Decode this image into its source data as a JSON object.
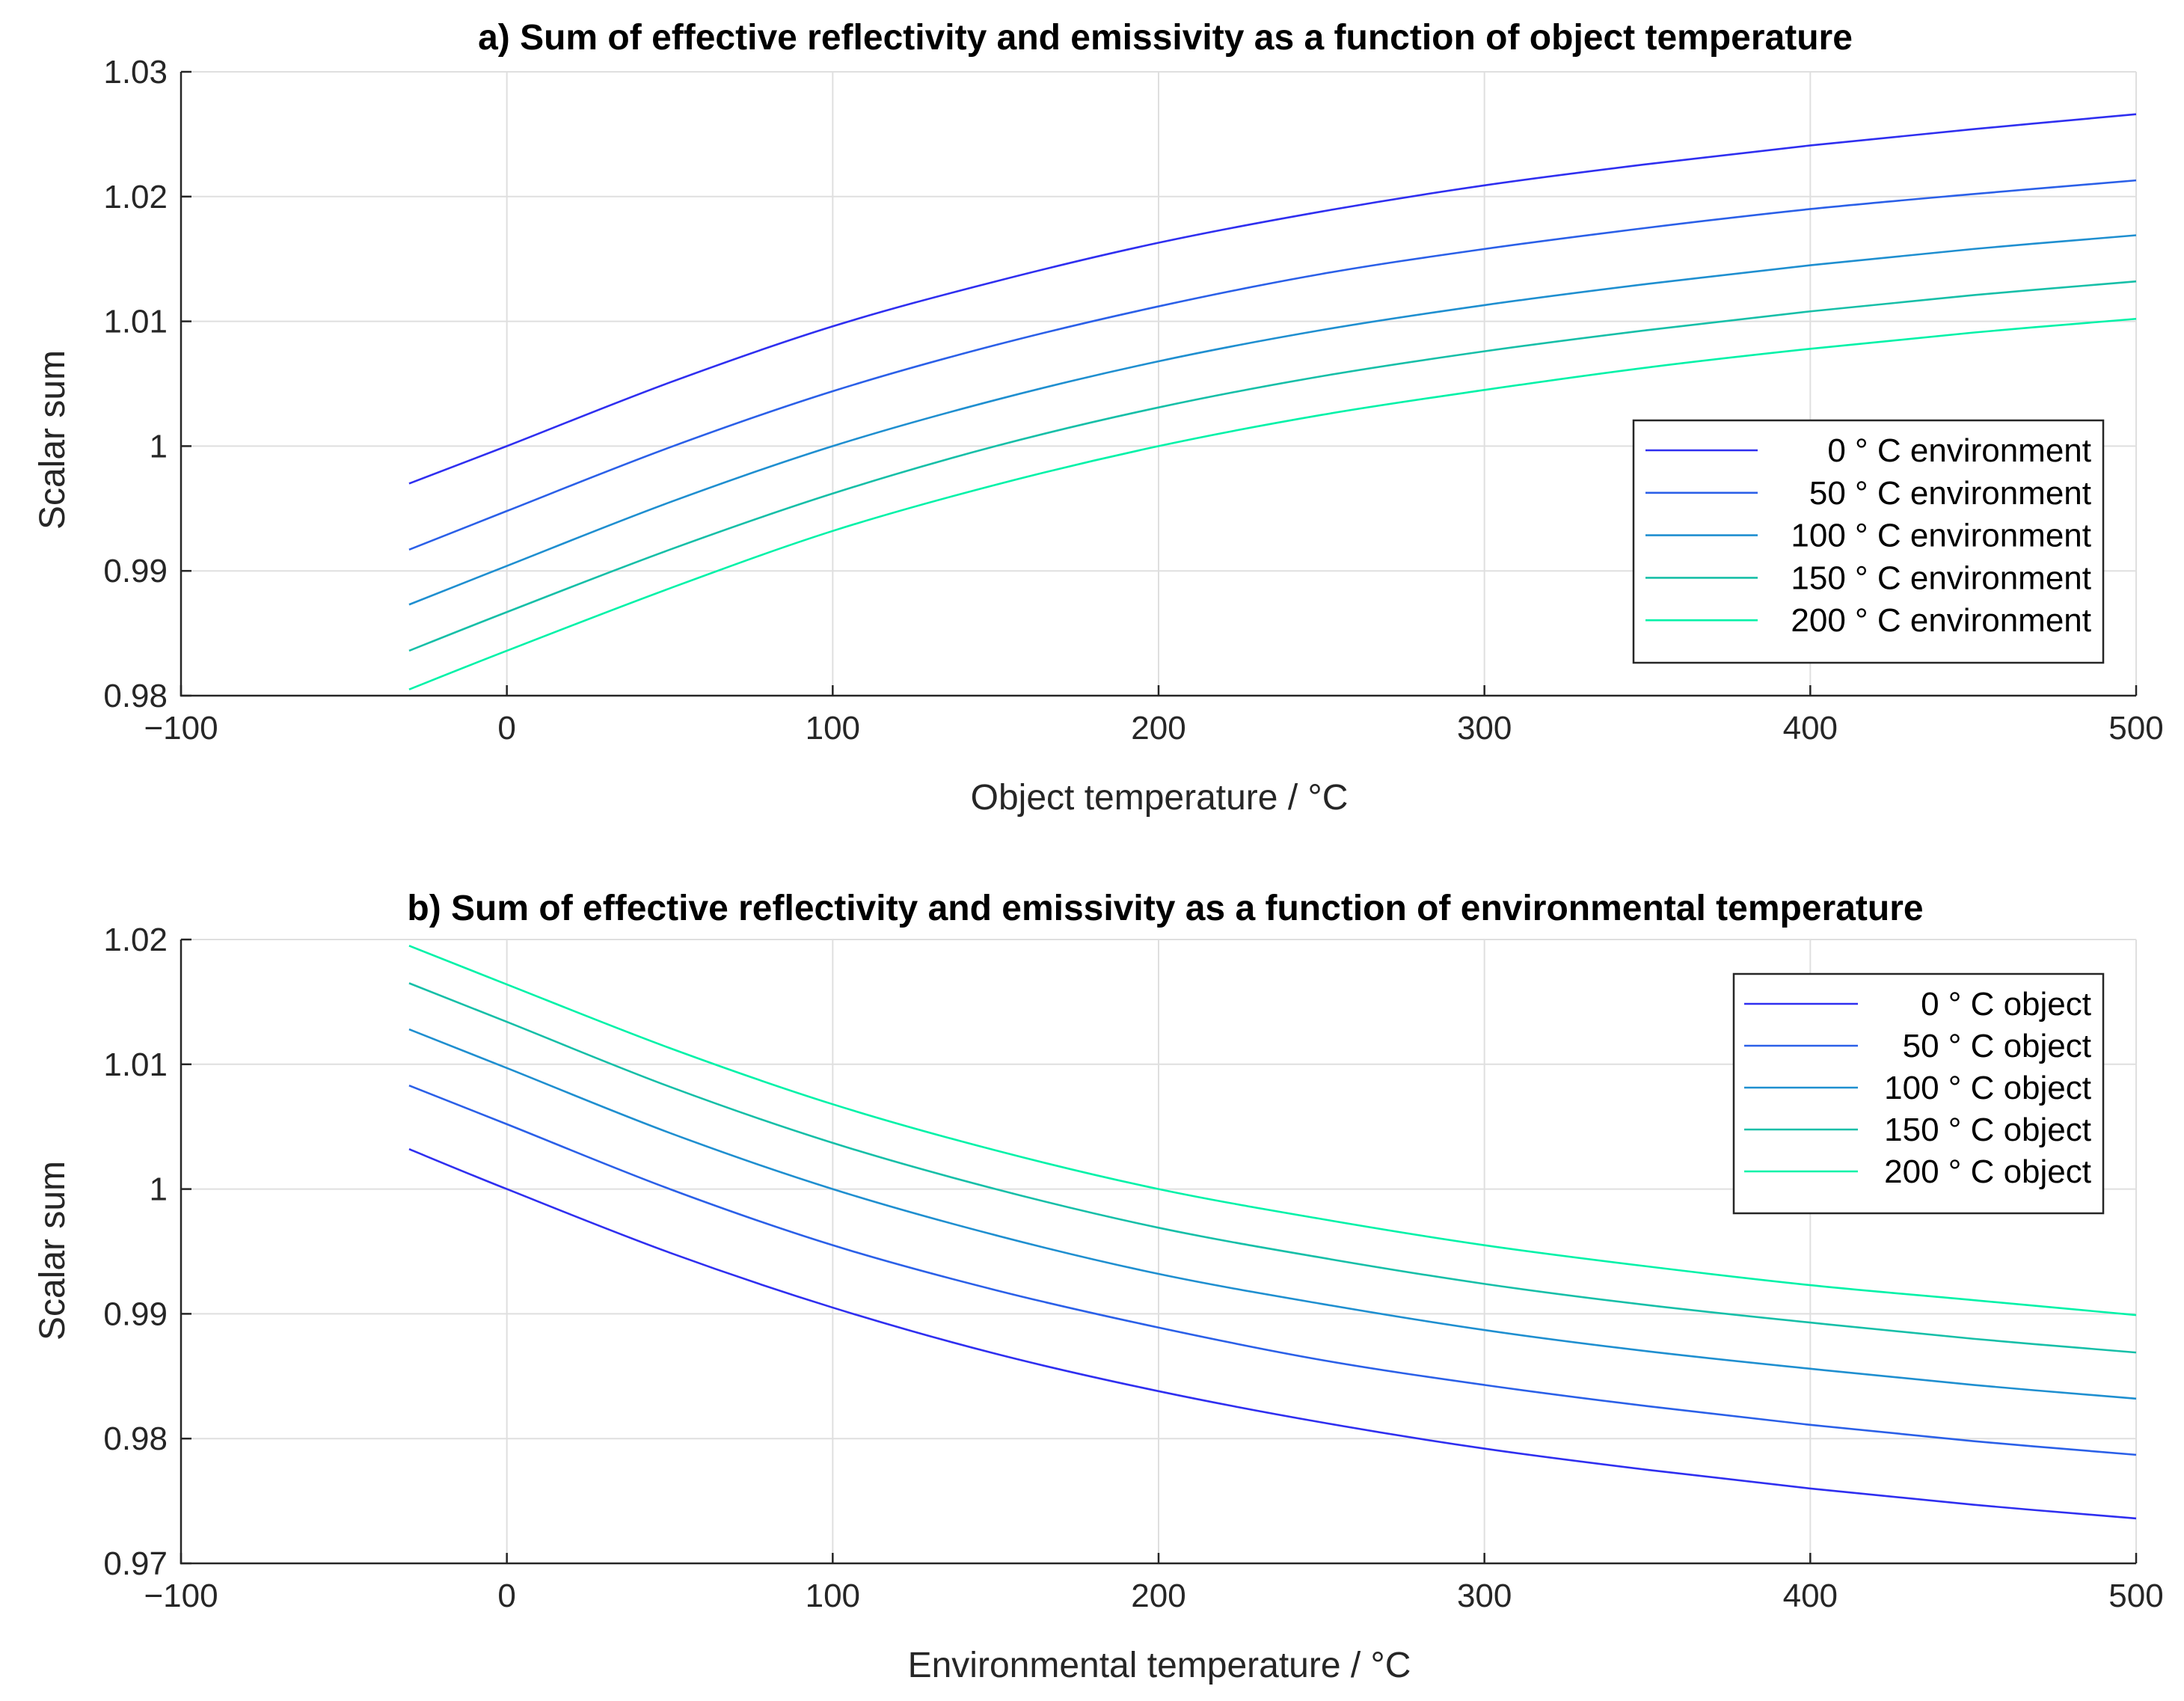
{
  "chart_data": [
    {
      "type": "line",
      "title": "a) Sum of effective reflectivity and emissivity as a function of object temperature",
      "xlabel": "Object temperature / °C",
      "ylabel": "Scalar sum",
      "xlim": [
        -100,
        500
      ],
      "ylim": [
        0.98,
        1.03
      ],
      "xticks": [
        -100,
        0,
        100,
        200,
        300,
        400,
        500
      ],
      "xtick_labels": [
        "−100",
        "0",
        "100",
        "200",
        "300",
        "400",
        "500"
      ],
      "yticks": [
        0.98,
        0.99,
        1.0,
        1.01,
        1.02,
        1.03
      ],
      "ytick_labels": [
        "0.98",
        "0.99",
        "1",
        "1.01",
        "1.02",
        "1.03"
      ],
      "grid": true,
      "legend_position": "center-right",
      "x": [
        -30,
        0,
        50,
        100,
        150,
        200,
        250,
        300,
        350,
        400,
        450,
        500
      ],
      "series": [
        {
          "name": "0 ° C environment",
          "color": "#2f2ff0",
          "values": [
            0.997,
            1.0,
            1.0051,
            1.0096,
            1.0132,
            1.0163,
            1.0188,
            1.0209,
            1.0226,
            1.0241,
            1.0254,
            1.0266
          ]
        },
        {
          "name": "50 ° C environment",
          "color": "#2b60e8",
          "values": [
            0.9917,
            0.9948,
            0.9999,
            1.0044,
            1.0081,
            1.0112,
            1.0138,
            1.0158,
            1.0175,
            1.019,
            1.0202,
            1.0213
          ]
        },
        {
          "name": "100 ° C environment",
          "color": "#1f8fd0",
          "values": [
            0.9873,
            0.9904,
            0.9955,
            1.0,
            1.0037,
            1.0068,
            1.0093,
            1.0113,
            1.013,
            1.0145,
            1.0158,
            1.0169
          ]
        },
        {
          "name": "150 ° C environment",
          "color": "#17bfa8",
          "values": [
            0.9836,
            0.9867,
            0.9917,
            0.9962,
            1.0,
            1.0031,
            1.0056,
            1.0076,
            1.0093,
            1.0108,
            1.0121,
            1.0132
          ]
        },
        {
          "name": "200 ° C environment",
          "color": "#00f2a8",
          "values": [
            0.9805,
            0.9836,
            0.9886,
            0.9932,
            0.9969,
            1.0,
            1.0025,
            1.0045,
            1.0063,
            1.0078,
            1.0091,
            1.0102
          ]
        }
      ]
    },
    {
      "type": "line",
      "title": "b) Sum of effective reflectivity and emissivity as a function of environmental temperature",
      "xlabel": "Environmental temperature / °C",
      "ylabel": "Scalar sum",
      "xlim": [
        -100,
        500
      ],
      "ylim": [
        0.97,
        1.02
      ],
      "xticks": [
        -100,
        0,
        100,
        200,
        300,
        400,
        500
      ],
      "xtick_labels": [
        "−100",
        "0",
        "100",
        "200",
        "300",
        "400",
        "500"
      ],
      "yticks": [
        0.97,
        0.98,
        0.99,
        1.0,
        1.01,
        1.02
      ],
      "ytick_labels": [
        "0.97",
        "0.98",
        "0.99",
        "1",
        "1.01",
        "1.02"
      ],
      "grid": true,
      "legend_position": "top-right",
      "x": [
        -30,
        0,
        50,
        100,
        150,
        200,
        250,
        300,
        350,
        400,
        450,
        500
      ],
      "series": [
        {
          "name": "0 ° C object",
          "color": "#2f2ff0",
          "values": [
            1.0032,
            1.0,
            0.9949,
            0.9905,
            0.9868,
            0.9838,
            0.9813,
            0.9792,
            0.9775,
            0.976,
            0.9747,
            0.9736
          ]
        },
        {
          "name": "50 ° C object",
          "color": "#2b60e8",
          "values": [
            1.0083,
            1.0052,
            1.0,
            0.9955,
            0.9919,
            0.9889,
            0.9863,
            0.9843,
            0.9826,
            0.9811,
            0.9798,
            0.9787
          ]
        },
        {
          "name": "100 ° C object",
          "color": "#1f8fd0",
          "values": [
            1.0128,
            1.0097,
            1.0045,
            1.0,
            0.9963,
            0.9932,
            0.9908,
            0.9887,
            0.987,
            0.9856,
            0.9843,
            0.9832
          ]
        },
        {
          "name": "150 ° C object",
          "color": "#17bfa8",
          "values": [
            1.0165,
            1.0134,
            1.0082,
            1.0037,
            1.0,
            0.9969,
            0.9945,
            0.9924,
            0.9907,
            0.9893,
            0.988,
            0.9869
          ]
        },
        {
          "name": "200 ° C object",
          "color": "#00f2a8",
          "values": [
            1.0195,
            1.0164,
            1.0113,
            1.0068,
            1.0031,
            1.0,
            0.9976,
            0.9955,
            0.9938,
            0.9923,
            0.9911,
            0.9899
          ]
        }
      ]
    }
  ]
}
